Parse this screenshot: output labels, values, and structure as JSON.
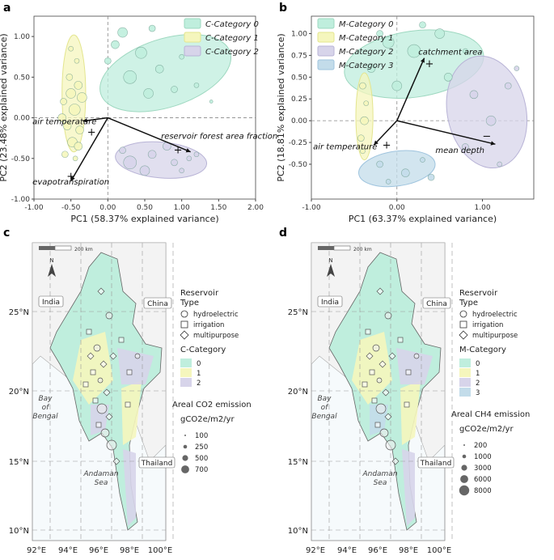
{
  "panels": {
    "a": {
      "letter": "a"
    },
    "b": {
      "letter": "b"
    },
    "c": {
      "letter": "c"
    },
    "d": {
      "letter": "d"
    }
  },
  "colors": {
    "cat0": "#bfeedd",
    "cat1": "#f5f6bd",
    "cat2": "#d7d4ea",
    "cat3": "#c3dcea",
    "ellipse0": "#9ed8c0",
    "ellipse1": "#e3e58e",
    "ellipse2": "#b8b3d6",
    "ellipse3": "#9fc4de",
    "sea": "#f6fafc",
    "land": "#f3f3f3"
  },
  "chart_data": [
    {
      "id": "a",
      "type": "scatter",
      "xlabel": "PC1 (58.37% explained variance)",
      "ylabel": "PC2 (23.48% explained variance)",
      "xlim": [
        -1.0,
        2.0
      ],
      "ylim": [
        -1.0,
        1.25
      ],
      "xticks": [
        -1.0,
        -0.5,
        0.0,
        0.5,
        1.0,
        1.5,
        2.0
      ],
      "xtick_labels": [
        "-1.00",
        "-0.50",
        "0.00",
        "0.50",
        "1.00",
        "1.50",
        "2.00"
      ],
      "yticks": [
        -1.0,
        -0.5,
        0.0,
        0.5,
        1.0
      ],
      "ytick_labels": [
        "-1.00",
        "-0.50",
        "0.00",
        "0.50",
        "1.00"
      ],
      "legend": [
        "C-Category 0",
        "C-Category 1",
        "C-Category 2"
      ],
      "ellipses": [
        {
          "cat": 0,
          "cx": 0.78,
          "cy": 0.55,
          "rx": 0.92,
          "ry": 0.42,
          "angle": -18
        },
        {
          "cat": 1,
          "cx": -0.46,
          "cy": 0.3,
          "rx": 0.16,
          "ry": 0.72,
          "angle": 0
        },
        {
          "cat": 2,
          "cx": 0.72,
          "cy": -0.52,
          "rx": 0.62,
          "ry": 0.22,
          "angle": 5
        }
      ],
      "vectors": [
        {
          "label": "air temperature",
          "x": -0.34,
          "y": -0.04,
          "lx": -1.02,
          "ly": -0.08
        },
        {
          "label": "reservoir forest area fraction",
          "x": 1.12,
          "y": -0.42,
          "lx": 0.72,
          "ly": -0.26
        },
        {
          "label": "evapotranspiration",
          "x": -0.5,
          "y": -0.78,
          "lx": -1.02,
          "ly": -0.82
        }
      ],
      "centroids": [
        {
          "x": 0.95,
          "y": -0.4
        },
        {
          "x": -0.22,
          "y": -0.18
        },
        {
          "x": -0.5,
          "y": -0.72
        }
      ],
      "points": [
        {
          "c": 1,
          "x": -0.5,
          "y": 0.3,
          "s": 6
        },
        {
          "c": 1,
          "x": -0.45,
          "y": 0.1,
          "s": 7
        },
        {
          "c": 1,
          "x": -0.55,
          "y": -0.1,
          "s": 5
        },
        {
          "c": 1,
          "x": -0.4,
          "y": 0.4,
          "s": 5
        },
        {
          "c": 1,
          "x": -0.6,
          "y": 0.2,
          "s": 4
        },
        {
          "c": 1,
          "x": -0.48,
          "y": -0.3,
          "s": 6
        },
        {
          "c": 1,
          "x": -0.38,
          "y": -0.15,
          "s": 5
        },
        {
          "c": 1,
          "x": -0.52,
          "y": 0.5,
          "s": 4
        },
        {
          "c": 1,
          "x": -0.42,
          "y": 0.7,
          "s": 3
        },
        {
          "c": 1,
          "x": -0.58,
          "y": -0.45,
          "s": 4
        },
        {
          "c": 1,
          "x": -0.35,
          "y": 0.25,
          "s": 6
        },
        {
          "c": 1,
          "x": -0.62,
          "y": 0.0,
          "s": 5
        },
        {
          "c": 1,
          "x": -0.44,
          "y": -0.5,
          "s": 3
        },
        {
          "c": 1,
          "x": -0.5,
          "y": 0.85,
          "s": 3
        },
        {
          "c": 1,
          "x": -0.4,
          "y": -0.35,
          "s": 5
        },
        {
          "c": 0,
          "x": 0.2,
          "y": 1.05,
          "s": 6
        },
        {
          "c": 0,
          "x": 0.45,
          "y": 0.8,
          "s": 7
        },
        {
          "c": 0,
          "x": 0.1,
          "y": 0.9,
          "s": 5
        },
        {
          "c": 0,
          "x": 0.7,
          "y": 0.6,
          "s": 5
        },
        {
          "c": 0,
          "x": 0.3,
          "y": 0.5,
          "s": 8
        },
        {
          "c": 0,
          "x": 0.9,
          "y": 0.35,
          "s": 4
        },
        {
          "c": 0,
          "x": 1.2,
          "y": 0.4,
          "s": 3
        },
        {
          "c": 0,
          "x": 0.55,
          "y": 0.3,
          "s": 6
        },
        {
          "c": 0,
          "x": 0.0,
          "y": 0.7,
          "s": 4
        },
        {
          "c": 0,
          "x": 1.0,
          "y": 0.75,
          "s": 3
        },
        {
          "c": 0,
          "x": 0.6,
          "y": 1.1,
          "s": 4
        },
        {
          "c": 0,
          "x": 1.4,
          "y": 0.2,
          "s": 2
        },
        {
          "c": 2,
          "x": 0.3,
          "y": -0.55,
          "s": 8
        },
        {
          "c": 2,
          "x": 0.6,
          "y": -0.45,
          "s": 5
        },
        {
          "c": 2,
          "x": 0.9,
          "y": -0.55,
          "s": 4
        },
        {
          "c": 2,
          "x": 1.1,
          "y": -0.5,
          "s": 3
        },
        {
          "c": 2,
          "x": 0.5,
          "y": -0.65,
          "s": 6
        },
        {
          "c": 2,
          "x": 0.8,
          "y": -0.35,
          "s": 5
        },
        {
          "c": 2,
          "x": 1.2,
          "y": -0.45,
          "s": 3
        },
        {
          "c": 2,
          "x": 0.2,
          "y": -0.4,
          "s": 4
        },
        {
          "c": 2,
          "x": 1.0,
          "y": -0.65,
          "s": 3
        }
      ]
    },
    {
      "id": "b",
      "type": "scatter",
      "xlabel": "PC1 (63.37% explained variance)",
      "ylabel": "PC2 (18.81% explained variance)",
      "xlim": [
        -1.0,
        1.6
      ],
      "ylim": [
        -0.9,
        1.2
      ],
      "xticks": [
        -1.0,
        0.0,
        1.0
      ],
      "xtick_labels": [
        "-1.00",
        "0.00",
        "1.00"
      ],
      "yticks": [
        -0.5,
        -0.25,
        0.0,
        0.25,
        0.5,
        0.75,
        1.0
      ],
      "ytick_labels": [
        "-0.50",
        "-0.25",
        "0.00",
        "0.25",
        "0.50",
        "0.75",
        "1.00"
      ],
      "legend": [
        "M-Category 0",
        "M-Category 1",
        "M-Category 2",
        "M-Category 3"
      ],
      "ellipses": [
        {
          "cat": 0,
          "cx": 0.2,
          "cy": 0.65,
          "rx": 0.82,
          "ry": 0.38,
          "angle": -8
        },
        {
          "cat": 1,
          "cx": -0.38,
          "cy": 0.05,
          "rx": 0.1,
          "ry": 0.5,
          "angle": 0
        },
        {
          "cat": 2,
          "cx": 1.05,
          "cy": 0.1,
          "rx": 0.46,
          "ry": 0.65,
          "angle": -12
        },
        {
          "cat": 3,
          "cx": 0.0,
          "cy": -0.55,
          "rx": 0.45,
          "ry": 0.2,
          "angle": -8
        }
      ],
      "vectors": [
        {
          "label": "catchment area",
          "x": 0.32,
          "y": 0.72,
          "lx": 0.25,
          "ly": 0.76
        },
        {
          "label": "air temperature",
          "x": -0.27,
          "y": -0.28,
          "lx": -0.98,
          "ly": -0.33
        },
        {
          "label": "mean depth",
          "x": 1.15,
          "y": -0.27,
          "lx": 0.45,
          "ly": -0.37
        }
      ],
      "centroids": [
        {
          "x": 0.38,
          "y": 0.65,
          "sym": "+"
        },
        {
          "x": -0.12,
          "y": -0.28,
          "sym": "+"
        },
        {
          "x": 1.05,
          "y": -0.18,
          "sym": "−"
        }
      ],
      "points": [
        {
          "c": 0,
          "x": -0.1,
          "y": 0.9,
          "s": 7
        },
        {
          "c": 0,
          "x": 0.2,
          "y": 0.8,
          "s": 8
        },
        {
          "c": 0,
          "x": 0.5,
          "y": 1.0,
          "s": 6
        },
        {
          "c": 0,
          "x": -0.3,
          "y": 0.6,
          "s": 5
        },
        {
          "c": 0,
          "x": 0.0,
          "y": 0.4,
          "s": 6
        },
        {
          "c": 0,
          "x": 0.6,
          "y": 0.5,
          "s": 5
        },
        {
          "c": 0,
          "x": 0.3,
          "y": 1.1,
          "s": 4
        },
        {
          "c": 0,
          "x": -0.2,
          "y": 1.0,
          "s": 4
        },
        {
          "c": 0,
          "x": 0.8,
          "y": 0.8,
          "s": 3
        },
        {
          "c": 1,
          "x": -0.4,
          "y": 0.4,
          "s": 4
        },
        {
          "c": 1,
          "x": -0.38,
          "y": 0.0,
          "s": 5
        },
        {
          "c": 1,
          "x": -0.42,
          "y": -0.2,
          "s": 4
        },
        {
          "c": 1,
          "x": -0.36,
          "y": 0.2,
          "s": 3
        },
        {
          "c": 1,
          "x": -0.4,
          "y": -0.35,
          "s": 3
        },
        {
          "c": 2,
          "x": 0.9,
          "y": 0.3,
          "s": 5
        },
        {
          "c": 2,
          "x": 1.1,
          "y": 0.0,
          "s": 6
        },
        {
          "c": 2,
          "x": 1.3,
          "y": 0.4,
          "s": 4
        },
        {
          "c": 2,
          "x": 0.8,
          "y": -0.3,
          "s": 4
        },
        {
          "c": 2,
          "x": 1.2,
          "y": -0.5,
          "s": 3
        },
        {
          "c": 2,
          "x": 1.4,
          "y": 0.6,
          "s": 3
        },
        {
          "c": 3,
          "x": -0.2,
          "y": -0.5,
          "s": 4
        },
        {
          "c": 3,
          "x": 0.1,
          "y": -0.6,
          "s": 5
        },
        {
          "c": 3,
          "x": 0.3,
          "y": -0.45,
          "s": 3
        },
        {
          "c": 3,
          "x": -0.1,
          "y": -0.7,
          "s": 3
        },
        {
          "c": 3,
          "x": 0.4,
          "y": -0.65,
          "s": 4
        }
      ]
    }
  ],
  "maps": {
    "c": {
      "scale_label": "200 km",
      "north_label": "N",
      "country_labels": {
        "india": "India",
        "china": "China",
        "thailand": "Thailand"
      },
      "sea_labels": {
        "bay": "Bay\nof\nBengal",
        "andaman": "Andaman\nSea"
      },
      "lat_labels": [
        "25°N",
        "20°N",
        "15°N",
        "10°N"
      ],
      "lon_labels": [
        "92°E",
        "94°E",
        "96°E",
        "98°E",
        "100°E"
      ],
      "legend": {
        "type_title": "Reservoir\nType",
        "types": [
          "hydroelectric",
          "irrigation",
          "multipurpose"
        ],
        "cat_title": "C-Category",
        "cats": [
          "0",
          "1",
          "2"
        ],
        "emission_title": "Areal CO2 emission",
        "emission_unit": "gCO2e/m2/yr",
        "sizes": [
          "100",
          "250",
          "500",
          "700"
        ]
      }
    },
    "d": {
      "scale_label": "200 km",
      "north_label": "N",
      "country_labels": {
        "india": "India",
        "china": "China",
        "thailand": "Thailand"
      },
      "sea_labels": {
        "bay": "Bay\nof\nBengal",
        "andaman": "Andaman\nSea"
      },
      "lat_labels": [
        "25°N",
        "20°N",
        "15°N",
        "10°N"
      ],
      "lon_labels": [
        "92°E",
        "94°E",
        "96°E",
        "98°E",
        "100°E"
      ],
      "legend": {
        "type_title": "Reservoir\nType",
        "types": [
          "hydroelectric",
          "irrigation",
          "multipurpose"
        ],
        "cat_title": "M-Category",
        "cats": [
          "0",
          "1",
          "2",
          "3"
        ],
        "emission_title": "Areal CH4 emission",
        "emission_unit": "gCO2e/m2/yr",
        "sizes": [
          "200",
          "1000",
          "3000",
          "6000",
          "8000"
        ]
      }
    }
  }
}
